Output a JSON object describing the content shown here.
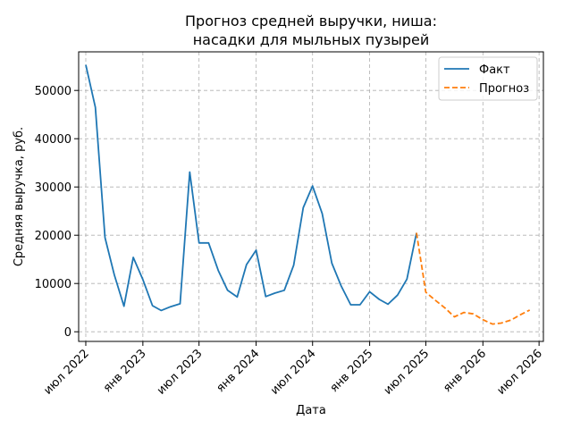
{
  "chart_data": {
    "type": "line",
    "title_line1": "Прогноз средней выручки, ниша:",
    "title_line2": "насадки для мыльных пузырей",
    "xlabel": "Дата",
    "ylabel": "Средняя выручка, руб.",
    "x_ticks": [
      {
        "date": "2022-07-01",
        "label": "июл 2022"
      },
      {
        "date": "2023-01-01",
        "label": "янв 2023"
      },
      {
        "date": "2023-07-01",
        "label": "июл 2023"
      },
      {
        "date": "2024-01-01",
        "label": "янв 2024"
      },
      {
        "date": "2024-07-01",
        "label": "июл 2024"
      },
      {
        "date": "2025-01-01",
        "label": "янв 2025"
      },
      {
        "date": "2025-07-01",
        "label": "июл 2025"
      },
      {
        "date": "2026-01-01",
        "label": "янв 2026"
      },
      {
        "date": "2026-07-01",
        "label": "июл 2026"
      }
    ],
    "y_ticks": [
      0,
      10000,
      20000,
      30000,
      40000,
      50000
    ],
    "xlim": [
      "2022-06-08",
      "2026-07-15"
    ],
    "ylim": [
      -2000,
      58000
    ],
    "grid": true,
    "legend_position": "top-right",
    "series": [
      {
        "name": "Факт",
        "color": "#1f77b4",
        "style": "solid",
        "points": [
          [
            "2022-07-01",
            55300
          ],
          [
            "2022-08-01",
            46500
          ],
          [
            "2022-09-01",
            19500
          ],
          [
            "2022-10-01",
            11800
          ],
          [
            "2022-11-01",
            5300
          ],
          [
            "2022-12-01",
            15400
          ],
          [
            "2023-01-01",
            10800
          ],
          [
            "2023-02-01",
            5400
          ],
          [
            "2023-03-01",
            4400
          ],
          [
            "2023-04-01",
            5200
          ],
          [
            "2023-05-01",
            5800
          ],
          [
            "2023-06-01",
            33100
          ],
          [
            "2023-07-01",
            18400
          ],
          [
            "2023-08-01",
            18400
          ],
          [
            "2023-09-01",
            12700
          ],
          [
            "2023-10-01",
            8600
          ],
          [
            "2023-11-01",
            7200
          ],
          [
            "2023-12-01",
            13900
          ],
          [
            "2024-01-01",
            16900
          ],
          [
            "2024-02-01",
            7300
          ],
          [
            "2024-03-01",
            8000
          ],
          [
            "2024-04-01",
            8600
          ],
          [
            "2024-05-01",
            13800
          ],
          [
            "2024-06-01",
            25700
          ],
          [
            "2024-07-01",
            30200
          ],
          [
            "2024-08-01",
            24500
          ],
          [
            "2024-09-01",
            14200
          ],
          [
            "2024-10-01",
            9500
          ],
          [
            "2024-11-01",
            5600
          ],
          [
            "2024-12-01",
            5600
          ],
          [
            "2025-01-01",
            8300
          ],
          [
            "2025-02-01",
            6700
          ],
          [
            "2025-03-01",
            5700
          ],
          [
            "2025-04-01",
            7600
          ],
          [
            "2025-05-01",
            10900
          ],
          [
            "2025-06-01",
            20500
          ]
        ]
      },
      {
        "name": "Прогноз",
        "color": "#ff7f0e",
        "style": "dashed",
        "points": [
          [
            "2025-06-01",
            20500
          ],
          [
            "2025-07-01",
            8200
          ],
          [
            "2025-08-01",
            6500
          ],
          [
            "2025-09-01",
            4900
          ],
          [
            "2025-10-01",
            3100
          ],
          [
            "2025-11-01",
            4000
          ],
          [
            "2025-12-01",
            3700
          ],
          [
            "2026-01-01",
            2500
          ],
          [
            "2026-02-01",
            1600
          ],
          [
            "2026-03-01",
            1800
          ],
          [
            "2026-04-01",
            2400
          ],
          [
            "2026-05-01",
            3500
          ],
          [
            "2026-06-01",
            4500
          ]
        ]
      }
    ]
  }
}
